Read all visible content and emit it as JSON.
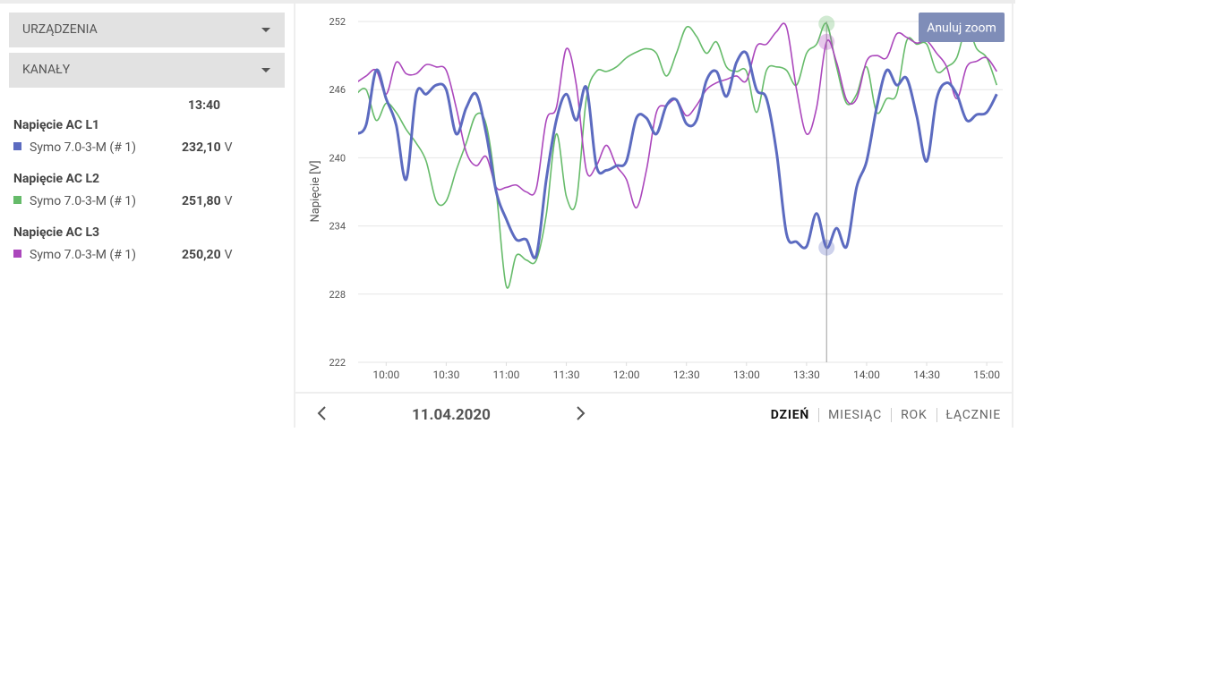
{
  "sidebar": {
    "dropdowns": [
      "URZĄDZENIA",
      "KANAŁY"
    ],
    "time": "13:40",
    "groups": [
      {
        "title": "Napięcie AC L1",
        "device": "Symo 7.0-3-M (# 1)",
        "value": "232,10",
        "unit": "V"
      },
      {
        "title": "Napięcie AC L2",
        "device": "Symo 7.0-3-M (# 1)",
        "value": "251,80",
        "unit": "V"
      },
      {
        "title": "Napięcie AC L3",
        "device": "Symo 7.0-3-M (# 1)",
        "value": "250,20",
        "unit": "V"
      }
    ]
  },
  "chart_data": {
    "type": "line",
    "ylabel": "Napięcie [V]",
    "button": "Anuluj zoom",
    "x": [
      "09:45",
      "09:50",
      "09:55",
      "10:00",
      "10:05",
      "10:10",
      "10:15",
      "10:20",
      "10:25",
      "10:30",
      "10:35",
      "10:40",
      "10:45",
      "10:50",
      "10:55",
      "11:00",
      "11:05",
      "11:10",
      "11:15",
      "11:20",
      "11:25",
      "11:30",
      "11:35",
      "11:40",
      "11:45",
      "11:50",
      "11:55",
      "12:00",
      "12:05",
      "12:10",
      "12:15",
      "12:20",
      "12:25",
      "12:30",
      "12:35",
      "12:40",
      "12:45",
      "12:50",
      "12:55",
      "13:00",
      "13:05",
      "13:10",
      "13:15",
      "13:20",
      "13:25",
      "13:30",
      "13:35",
      "13:40",
      "13:45",
      "13:50",
      "13:55",
      "14:00",
      "14:05",
      "14:10",
      "14:15",
      "14:20",
      "14:25",
      "14:30",
      "14:35",
      "14:40",
      "14:45",
      "14:50",
      "14:55",
      "15:00",
      "15:05"
    ],
    "series": [
      {
        "name": "Napięcie AC L1",
        "color": "#5c6bc0",
        "width": 3,
        "values": [
          242.1,
          242.9,
          247.7,
          245.2,
          242.9,
          238.1,
          245.6,
          245.6,
          246.4,
          246,
          242.1,
          244.4,
          245.6,
          242.1,
          237,
          234.6,
          232.8,
          232.8,
          231.4,
          238.1,
          243.3,
          245.6,
          243.3,
          246.2,
          239.3,
          238.9,
          239.3,
          239.7,
          243.5,
          243.5,
          242.1,
          244.6,
          245.1,
          243,
          243.3,
          246.8,
          247.6,
          245.4,
          248.4,
          249.2,
          246,
          245.2,
          240.5,
          233.3,
          232.6,
          232.2,
          235.1,
          232.1,
          233.8,
          232.2,
          237.4,
          239.7,
          244.4,
          247.7,
          246.4,
          247,
          243.7,
          239.7,
          245.2,
          246.6,
          245.6,
          243.3,
          243.8,
          244,
          245.6
        ]
      },
      {
        "name": "Napięcie AC L2",
        "color": "#66bb6a",
        "width": 1.6,
        "values": [
          245.6,
          246,
          243.3,
          244.8,
          244,
          242.5,
          241.3,
          239.7,
          236.2,
          236.2,
          238.9,
          241.3,
          243.8,
          242.9,
          237,
          228.7,
          231.4,
          231,
          231,
          235,
          242.1,
          236.6,
          236.2,
          245.2,
          247.6,
          247.6,
          248,
          248.8,
          249.3,
          249.6,
          249.2,
          247.2,
          249.2,
          251.5,
          250.7,
          249.2,
          250.2,
          248,
          247.6,
          247.6,
          244,
          247.7,
          248,
          247.7,
          246.4,
          249.2,
          250,
          251.8,
          248,
          244.8,
          245.6,
          248,
          244,
          245.2,
          245.6,
          250.3,
          250,
          250,
          247.6,
          248,
          248.8,
          251.5,
          249.6,
          248.8,
          246.4
        ]
      },
      {
        "name": "Napięcie AC L3",
        "color": "#ab47bc",
        "width": 1.6,
        "values": [
          246.6,
          247.2,
          247.7,
          245.6,
          248.4,
          247.4,
          247.4,
          248.2,
          248,
          247.7,
          244.4,
          240.5,
          239.3,
          240.1,
          237.4,
          237.4,
          237.6,
          237,
          237.3,
          243.3,
          244.4,
          249.6,
          246.4,
          238.9,
          239.3,
          241.1,
          239.3,
          238.1,
          235.6,
          238.9,
          244,
          244.6,
          245.1,
          243.7,
          244.6,
          246,
          246.6,
          246.9,
          247.2,
          246.8,
          249.8,
          250,
          251.1,
          251.5,
          246,
          242.1,
          244.4,
          250.2,
          248.4,
          245.1,
          245.2,
          248.5,
          249,
          248.8,
          250.9,
          250.6,
          250.1,
          250.3,
          249.2,
          248,
          245.2,
          248,
          248.5,
          248.8,
          247.6
        ]
      }
    ],
    "xlim": [
      "09:46",
      "15:08"
    ],
    "xticks": [
      "10:00",
      "10:30",
      "11:00",
      "11:30",
      "12:00",
      "12:30",
      "13:00",
      "13:30",
      "14:00",
      "14:30",
      "15:00"
    ],
    "ylim": [
      222,
      252
    ],
    "yticks": [
      222,
      228,
      234,
      240,
      246,
      252
    ],
    "grid": true
  },
  "footer": {
    "date": "11.04.2020",
    "periods": [
      "DZIEŃ",
      "MIESIĄC",
      "ROK",
      "ŁĄCZNIE"
    ],
    "active": "DZIEŃ"
  }
}
